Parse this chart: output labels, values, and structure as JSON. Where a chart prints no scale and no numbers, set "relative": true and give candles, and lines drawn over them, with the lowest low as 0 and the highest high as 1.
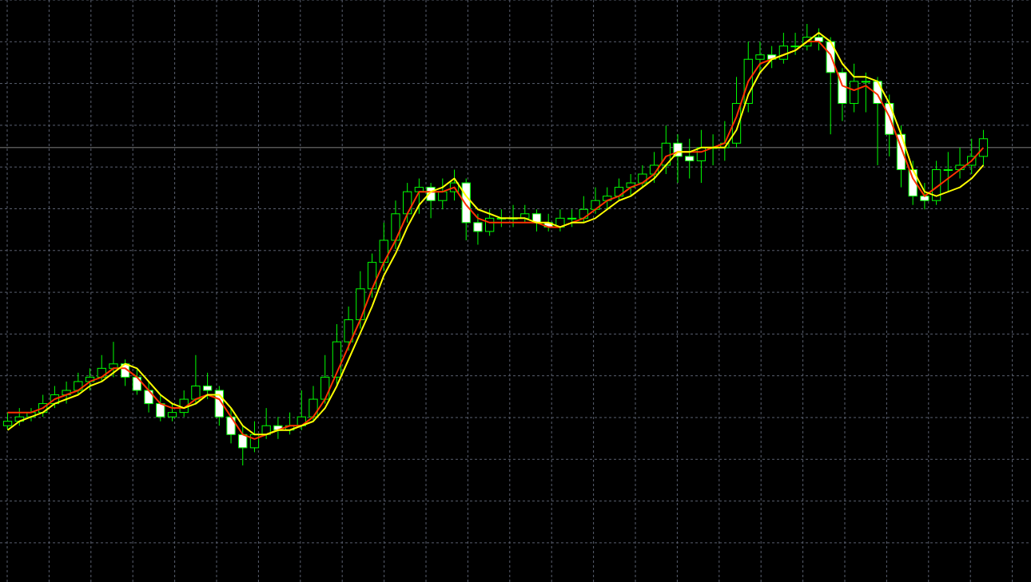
{
  "chart_data": {
    "type": "candlestick",
    "relative": true,
    "grid": true,
    "color": "#00ff00",
    "colors": [
      "#000000",
      "#000000",
      "#000000",
      "#000000",
      "#000000",
      "#000000",
      "#000000",
      "#000000",
      "#000000",
      "#000000",
      "#ffffff",
      "#ffffff",
      "#ffffff",
      "#ffffff",
      "#000000",
      "#000000",
      "#000000",
      "#ffffff",
      "#ffffff",
      "#ffffff",
      "#ffffff",
      "#000000",
      "#000000",
      "#ffffff",
      "#000000",
      "#000000",
      "#000000",
      "#000000",
      "#000000",
      "#000000",
      "#000000",
      "#000000",
      "#000000",
      "#000000",
      "#000000",
      "#000000",
      "#ffffff",
      "#000000",
      "#000000",
      "#ffffff",
      "#ffffff",
      "#000000",
      "#000000",
      "#000000",
      "#000000",
      "#ffffff",
      "#ffffff",
      "#000000",
      "#000000",
      "#000000",
      "#000000",
      "#000000",
      "#000000",
      "#000000",
      "#000000",
      "#000000",
      "#000000",
      "#ffffff",
      "#ffffff",
      "#000000",
      "#000000",
      "#000000",
      "#000000",
      "#000000",
      "#000000",
      "#ffffff",
      "#000000",
      "#000000",
      "#000000",
      "#ffffff",
      "#ffffff",
      "#ffffff",
      "#000000",
      "#000000",
      "#ffffff",
      "#ffffff",
      "#ffffff",
      "#ffffff",
      "#ffffff",
      "#000000",
      "#000000",
      "#000000",
      "#000000",
      "#000000"
    ],
    "categories": [
      null,
      null,
      null,
      null,
      null,
      null,
      null,
      null,
      null,
      null,
      null,
      null,
      null,
      null,
      null,
      null,
      null,
      null,
      null,
      null,
      null,
      null,
      null,
      null,
      null,
      null,
      null,
      null,
      null,
      null,
      null,
      null,
      null,
      null,
      null,
      null,
      null,
      null,
      null,
      null,
      null,
      null,
      null,
      null,
      null,
      null,
      null,
      null,
      null,
      null,
      null,
      null,
      null,
      null,
      null,
      null,
      null,
      null,
      null,
      null,
      null,
      null,
      null,
      null,
      null,
      null,
      null,
      null,
      null,
      null,
      null,
      null,
      null,
      null,
      null,
      null,
      null,
      null,
      null,
      null,
      null,
      null,
      null,
      null
    ],
    "ohlc": [
      [
        0.09,
        0.12,
        0.08,
        0.1
      ],
      [
        0.1,
        0.13,
        0.09,
        0.11
      ],
      [
        0.11,
        0.13,
        0.1,
        0.12
      ],
      [
        0.12,
        0.16,
        0.11,
        0.14
      ],
      [
        0.14,
        0.18,
        0.13,
        0.16
      ],
      [
        0.16,
        0.19,
        0.14,
        0.17
      ],
      [
        0.17,
        0.21,
        0.16,
        0.19
      ],
      [
        0.19,
        0.22,
        0.17,
        0.2
      ],
      [
        0.2,
        0.25,
        0.19,
        0.22
      ],
      [
        0.22,
        0.28,
        0.2,
        0.23
      ],
      [
        0.23,
        0.24,
        0.18,
        0.2
      ],
      [
        0.2,
        0.22,
        0.16,
        0.17
      ],
      [
        0.17,
        0.19,
        0.12,
        0.14
      ],
      [
        0.14,
        0.16,
        0.1,
        0.11
      ],
      [
        0.11,
        0.14,
        0.1,
        0.12
      ],
      [
        0.12,
        0.17,
        0.11,
        0.15
      ],
      [
        0.15,
        0.25,
        0.14,
        0.18
      ],
      [
        0.18,
        0.21,
        0.15,
        0.17
      ],
      [
        0.17,
        0.18,
        0.09,
        0.11
      ],
      [
        0.11,
        0.13,
        0.05,
        0.07
      ],
      [
        0.07,
        0.09,
        0.0,
        0.04
      ],
      [
        0.04,
        0.1,
        0.03,
        0.07
      ],
      [
        0.07,
        0.13,
        0.06,
        0.09
      ],
      [
        0.09,
        0.11,
        0.06,
        0.08
      ],
      [
        0.08,
        0.12,
        0.07,
        0.09
      ],
      [
        0.09,
        0.17,
        0.08,
        0.11
      ],
      [
        0.11,
        0.18,
        0.1,
        0.15
      ],
      [
        0.15,
        0.25,
        0.14,
        0.2
      ],
      [
        0.2,
        0.32,
        0.18,
        0.28
      ],
      [
        0.28,
        0.36,
        0.26,
        0.33
      ],
      [
        0.33,
        0.44,
        0.31,
        0.4
      ],
      [
        0.4,
        0.48,
        0.38,
        0.46
      ],
      [
        0.46,
        0.55,
        0.44,
        0.51
      ],
      [
        0.51,
        0.6,
        0.49,
        0.57
      ],
      [
        0.57,
        0.64,
        0.55,
        0.62
      ],
      [
        0.62,
        0.65,
        0.57,
        0.63
      ],
      [
        0.63,
        0.64,
        0.56,
        0.6
      ],
      [
        0.6,
        0.65,
        0.58,
        0.62
      ],
      [
        0.62,
        0.67,
        0.6,
        0.64
      ],
      [
        0.64,
        0.65,
        0.51,
        0.55
      ],
      [
        0.55,
        0.57,
        0.5,
        0.53
      ],
      [
        0.53,
        0.58,
        0.52,
        0.56
      ],
      [
        0.56,
        0.58,
        0.54,
        0.56
      ],
      [
        0.56,
        0.59,
        0.54,
        0.56
      ],
      [
        0.56,
        0.59,
        0.55,
        0.57
      ],
      [
        0.57,
        0.58,
        0.53,
        0.55
      ],
      [
        0.55,
        0.57,
        0.53,
        0.54
      ],
      [
        0.54,
        0.58,
        0.53,
        0.56
      ],
      [
        0.56,
        0.58,
        0.54,
        0.56
      ],
      [
        0.56,
        0.61,
        0.55,
        0.58
      ],
      [
        0.58,
        0.63,
        0.57,
        0.6
      ],
      [
        0.6,
        0.63,
        0.58,
        0.61
      ],
      [
        0.61,
        0.65,
        0.6,
        0.63
      ],
      [
        0.63,
        0.66,
        0.61,
        0.64
      ],
      [
        0.64,
        0.68,
        0.63,
        0.66
      ],
      [
        0.66,
        0.71,
        0.64,
        0.68
      ],
      [
        0.68,
        0.77,
        0.66,
        0.73
      ],
      [
        0.73,
        0.75,
        0.64,
        0.7
      ],
      [
        0.7,
        0.74,
        0.65,
        0.69
      ],
      [
        0.69,
        0.76,
        0.64,
        0.72
      ],
      [
        0.72,
        0.75,
        0.68,
        0.72
      ],
      [
        0.72,
        0.78,
        0.69,
        0.73
      ],
      [
        0.73,
        0.88,
        0.72,
        0.82
      ],
      [
        0.82,
        0.96,
        0.8,
        0.92
      ],
      [
        0.92,
        0.96,
        0.89,
        0.93
      ],
      [
        0.93,
        0.95,
        0.9,
        0.92
      ],
      [
        0.92,
        0.98,
        0.91,
        0.95
      ],
      [
        0.95,
        0.98,
        0.93,
        0.95
      ],
      [
        0.95,
        1.0,
        0.94,
        0.97
      ],
      [
        0.97,
        0.99,
        0.94,
        0.96
      ],
      [
        0.96,
        0.97,
        0.75,
        0.89
      ],
      [
        0.89,
        0.9,
        0.78,
        0.82
      ],
      [
        0.82,
        0.91,
        0.8,
        0.87
      ],
      [
        0.87,
        0.89,
        0.8,
        0.87
      ],
      [
        0.87,
        0.88,
        0.68,
        0.82
      ],
      [
        0.82,
        0.84,
        0.7,
        0.75
      ],
      [
        0.75,
        0.77,
        0.63,
        0.67
      ],
      [
        0.67,
        0.69,
        0.59,
        0.61
      ],
      [
        0.61,
        0.64,
        0.58,
        0.6
      ],
      [
        0.6,
        0.69,
        0.59,
        0.67
      ],
      [
        0.67,
        0.71,
        0.62,
        0.67
      ],
      [
        0.67,
        0.72,
        0.65,
        0.68
      ],
      [
        0.68,
        0.74,
        0.66,
        0.7
      ],
      [
        0.7,
        0.76,
        0.68,
        0.74
      ]
    ],
    "series": [
      {
        "type": "line",
        "color": "#ff3300",
        "values": [
          0.12,
          0.12,
          0.12,
          0.13,
          0.15,
          0.16,
          0.17,
          0.19,
          0.2,
          0.22,
          0.22,
          0.2,
          0.17,
          0.14,
          0.13,
          0.13,
          0.15,
          0.16,
          0.15,
          0.11,
          0.07,
          0.06,
          0.07,
          0.08,
          0.09,
          0.09,
          0.11,
          0.15,
          0.21,
          0.27,
          0.33,
          0.4,
          0.46,
          0.51,
          0.57,
          0.62,
          0.62,
          0.62,
          0.63,
          0.59,
          0.56,
          0.55,
          0.55,
          0.55,
          0.55,
          0.55,
          0.54,
          0.54,
          0.55,
          0.56,
          0.58,
          0.6,
          0.61,
          0.63,
          0.64,
          0.66,
          0.7,
          0.71,
          0.71,
          0.71,
          0.72,
          0.73,
          0.79,
          0.87,
          0.91,
          0.92,
          0.93,
          0.94,
          0.96,
          0.96,
          0.93,
          0.86,
          0.85,
          0.86,
          0.84,
          0.79,
          0.72,
          0.65,
          0.61,
          0.63,
          0.65,
          0.67,
          0.69,
          0.72
        ]
      },
      {
        "type": "line",
        "color": "#ffff00",
        "values": [
          0.08,
          0.1,
          0.11,
          0.12,
          0.14,
          0.15,
          0.16,
          0.18,
          0.19,
          0.21,
          0.23,
          0.22,
          0.19,
          0.16,
          0.14,
          0.13,
          0.14,
          0.16,
          0.16,
          0.13,
          0.09,
          0.07,
          0.07,
          0.08,
          0.08,
          0.09,
          0.1,
          0.13,
          0.18,
          0.24,
          0.3,
          0.36,
          0.43,
          0.48,
          0.54,
          0.59,
          0.62,
          0.63,
          0.65,
          0.61,
          0.58,
          0.57,
          0.56,
          0.56,
          0.56,
          0.55,
          0.55,
          0.54,
          0.55,
          0.55,
          0.56,
          0.58,
          0.6,
          0.61,
          0.63,
          0.65,
          0.68,
          0.71,
          0.71,
          0.72,
          0.72,
          0.72,
          0.76,
          0.84,
          0.89,
          0.92,
          0.93,
          0.94,
          0.96,
          0.98,
          0.96,
          0.91,
          0.88,
          0.88,
          0.87,
          0.82,
          0.75,
          0.67,
          0.62,
          0.61,
          0.62,
          0.63,
          0.65,
          0.68
        ]
      }
    ],
    "ref_lines": [
      {
        "axis": "y",
        "value": 0.72,
        "color": "#808080"
      }
    ]
  }
}
